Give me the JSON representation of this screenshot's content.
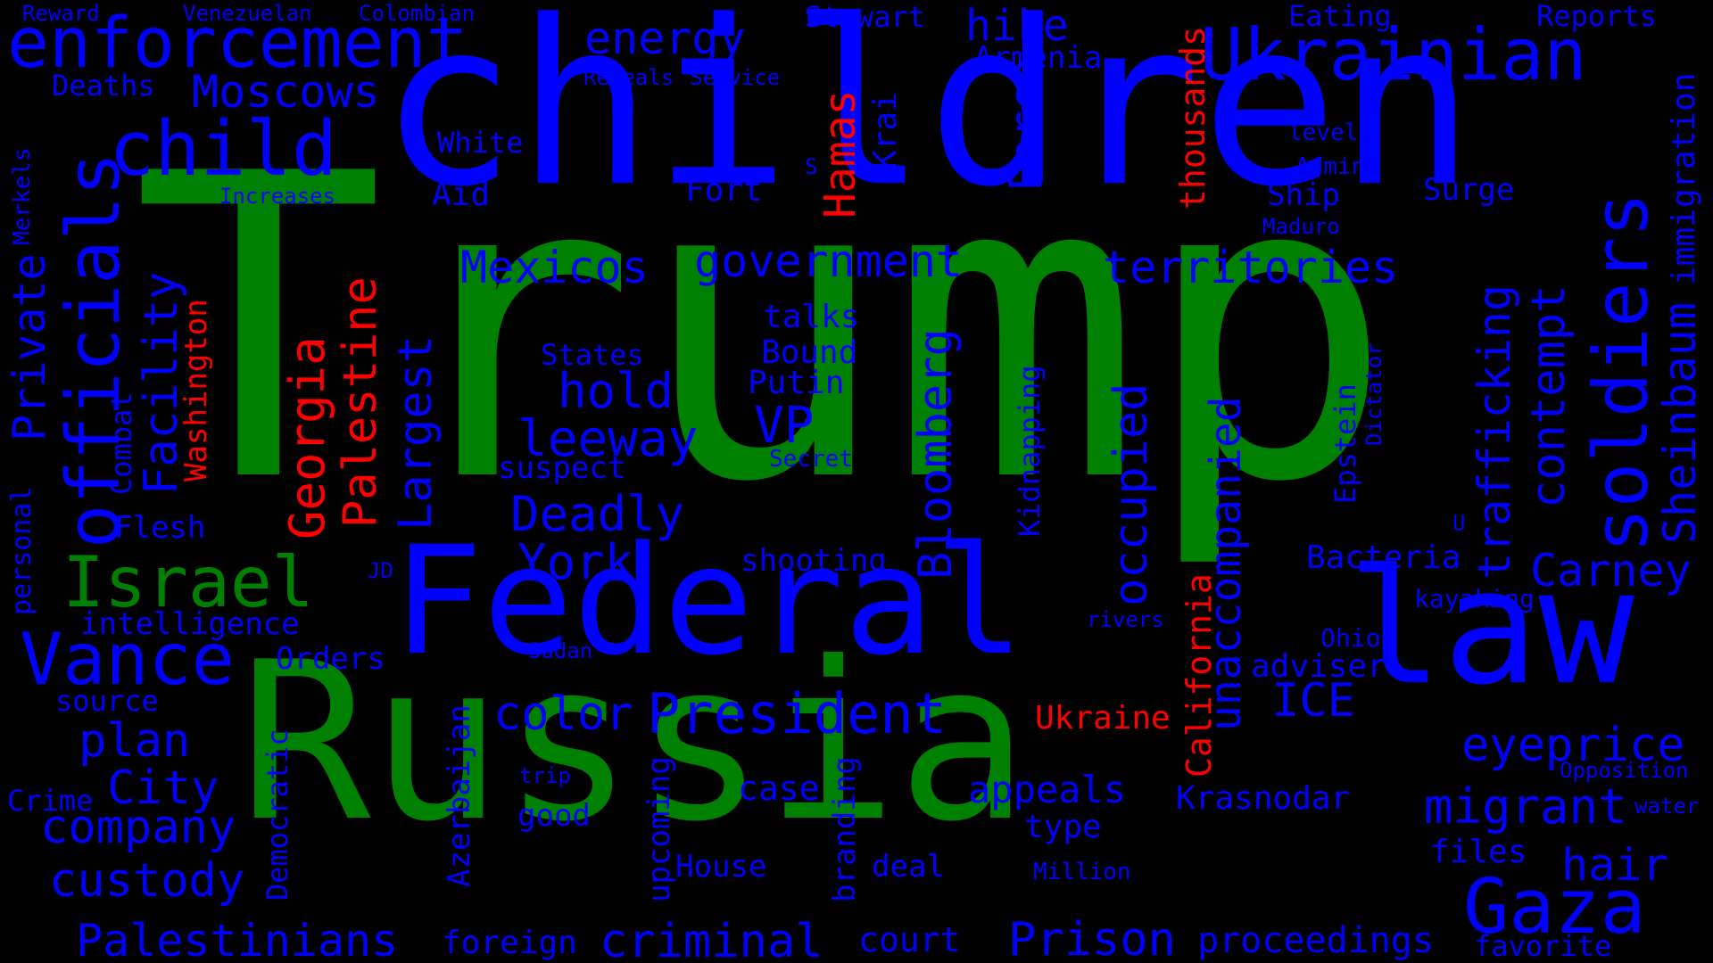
{
  "colors": {
    "background": "#000000",
    "green": "#008000",
    "blue": "#0000ff",
    "red": "#ff0000"
  },
  "words": [
    {
      "name": "trump",
      "text": "Trump",
      "color": "green"
    },
    {
      "name": "russia",
      "text": "Russia",
      "color": "green"
    },
    {
      "name": "israel",
      "text": "Israel",
      "color": "green"
    },
    {
      "name": "children",
      "text": "children",
      "color": "blue"
    },
    {
      "name": "federal",
      "text": "Federal",
      "color": "blue"
    },
    {
      "name": "law",
      "text": "law",
      "color": "blue"
    },
    {
      "name": "enforcement",
      "text": "enforcement",
      "color": "blue"
    },
    {
      "name": "ukrainian",
      "text": "Ukrainian",
      "color": "blue"
    },
    {
      "name": "child",
      "text": "child",
      "color": "blue"
    },
    {
      "name": "officials",
      "text": "officials",
      "color": "blue"
    },
    {
      "name": "vance",
      "text": "Vance",
      "color": "blue"
    },
    {
      "name": "gaza",
      "text": "Gaza",
      "color": "blue"
    },
    {
      "name": "soldiers",
      "text": "soldiers",
      "color": "blue"
    },
    {
      "name": "president",
      "text": "President",
      "color": "blue"
    },
    {
      "name": "moscows",
      "text": "Moscows",
      "color": "blue"
    },
    {
      "name": "energy",
      "text": "energy",
      "color": "blue"
    },
    {
      "name": "hike",
      "text": "hike",
      "color": "blue"
    },
    {
      "name": "stewart",
      "text": "Stewart",
      "color": "blue"
    },
    {
      "name": "eating",
      "text": "Eating",
      "color": "blue"
    },
    {
      "name": "reports",
      "text": "Reports",
      "color": "blue"
    },
    {
      "name": "armenia",
      "text": "Armenia",
      "color": "blue"
    },
    {
      "name": "reward",
      "text": "Reward",
      "color": "blue"
    },
    {
      "name": "venezuelan",
      "text": "Venezuelan",
      "color": "blue"
    },
    {
      "name": "colombian",
      "text": "Colombian",
      "color": "blue"
    },
    {
      "name": "deaths",
      "text": "Deaths",
      "color": "blue"
    },
    {
      "name": "reveals",
      "text": "Reveals",
      "color": "blue"
    },
    {
      "name": "service",
      "text": "Service",
      "color": "blue"
    },
    {
      "name": "white",
      "text": "White",
      "color": "blue"
    },
    {
      "name": "aid",
      "text": "Aid",
      "color": "blue"
    },
    {
      "name": "increases",
      "text": "Increases",
      "color": "blue"
    },
    {
      "name": "fort",
      "text": "Fort",
      "color": "blue"
    },
    {
      "name": "level",
      "text": "level",
      "color": "blue"
    },
    {
      "name": "admin",
      "text": "Admin",
      "color": "blue"
    },
    {
      "name": "ship",
      "text": "Ship",
      "color": "blue"
    },
    {
      "name": "surge",
      "text": "Surge",
      "color": "blue"
    },
    {
      "name": "maduro",
      "text": "Maduro",
      "color": "blue"
    },
    {
      "name": "s",
      "text": "S",
      "color": "blue"
    },
    {
      "name": "mexicos",
      "text": "Mexicos",
      "color": "blue"
    },
    {
      "name": "government",
      "text": "government",
      "color": "blue"
    },
    {
      "name": "territories",
      "text": "territories",
      "color": "blue"
    },
    {
      "name": "talks",
      "text": "talks",
      "color": "blue"
    },
    {
      "name": "bound",
      "text": "Bound",
      "color": "blue"
    },
    {
      "name": "putin",
      "text": "Putin",
      "color": "blue"
    },
    {
      "name": "states",
      "text": "States",
      "color": "blue"
    },
    {
      "name": "hold",
      "text": "hold",
      "color": "blue"
    },
    {
      "name": "vp",
      "text": "VP",
      "color": "blue"
    },
    {
      "name": "leeway",
      "text": "leeway",
      "color": "blue"
    },
    {
      "name": "secret",
      "text": "Secret",
      "color": "blue"
    },
    {
      "name": "suspect",
      "text": "suspect",
      "color": "blue"
    },
    {
      "name": "deadly",
      "text": "Deadly",
      "color": "blue"
    },
    {
      "name": "york",
      "text": "York",
      "color": "blue"
    },
    {
      "name": "shooting",
      "text": "shooting",
      "color": "blue"
    },
    {
      "name": "flesh",
      "text": "Flesh",
      "color": "blue"
    },
    {
      "name": "jd",
      "text": "JD",
      "color": "blue"
    },
    {
      "name": "intelligence",
      "text": "intelligence",
      "color": "blue"
    },
    {
      "name": "orders",
      "text": "Orders",
      "color": "blue"
    },
    {
      "name": "sudan",
      "text": "Sudan",
      "color": "blue"
    },
    {
      "name": "rivers",
      "text": "rivers",
      "color": "blue"
    },
    {
      "name": "source",
      "text": "source",
      "color": "blue"
    },
    {
      "name": "color",
      "text": "color",
      "color": "blue"
    },
    {
      "name": "plan",
      "text": "plan",
      "color": "blue"
    },
    {
      "name": "city",
      "text": "City",
      "color": "blue"
    },
    {
      "name": "crime",
      "text": "Crime",
      "color": "blue"
    },
    {
      "name": "company",
      "text": "company",
      "color": "blue"
    },
    {
      "name": "custody",
      "text": "custody",
      "color": "blue"
    },
    {
      "name": "palestinians",
      "text": "Palestinians",
      "color": "blue"
    },
    {
      "name": "foreign",
      "text": "foreign",
      "color": "blue"
    },
    {
      "name": "criminal",
      "text": "criminal",
      "color": "blue"
    },
    {
      "name": "court",
      "text": "court",
      "color": "blue"
    },
    {
      "name": "prison",
      "text": "Prison",
      "color": "blue"
    },
    {
      "name": "proceedings",
      "text": "proceedings",
      "color": "blue"
    },
    {
      "name": "favorite",
      "text": "favorite",
      "color": "blue"
    },
    {
      "name": "case",
      "text": "case",
      "color": "blue"
    },
    {
      "name": "good",
      "text": "good",
      "color": "blue"
    },
    {
      "name": "trip",
      "text": "trip",
      "color": "blue"
    },
    {
      "name": "house",
      "text": "House",
      "color": "blue"
    },
    {
      "name": "deal",
      "text": "deal",
      "color": "blue"
    },
    {
      "name": "million",
      "text": "Million",
      "color": "blue"
    },
    {
      "name": "appeals",
      "text": "appeals",
      "color": "blue"
    },
    {
      "name": "type",
      "text": "type",
      "color": "blue"
    },
    {
      "name": "krasnodar",
      "text": "Krasnodar",
      "color": "blue"
    },
    {
      "name": "ice",
      "text": "ICE",
      "color": "blue"
    },
    {
      "name": "adviser",
      "text": "adviser",
      "color": "blue"
    },
    {
      "name": "ohio",
      "text": "Ohio",
      "color": "blue"
    },
    {
      "name": "kayaking",
      "text": "kayaking",
      "color": "blue"
    },
    {
      "name": "bacteria",
      "text": "Bacteria",
      "color": "blue"
    },
    {
      "name": "u",
      "text": "U",
      "color": "blue"
    },
    {
      "name": "carney",
      "text": "Carney",
      "color": "blue"
    },
    {
      "name": "eyeprice",
      "text": "eyeprice",
      "color": "blue"
    },
    {
      "name": "migrant",
      "text": "migrant",
      "color": "blue"
    },
    {
      "name": "water",
      "text": "water",
      "color": "blue"
    },
    {
      "name": "opposition",
      "text": "Opposition",
      "color": "blue"
    },
    {
      "name": "files",
      "text": "files",
      "color": "blue"
    },
    {
      "name": "hair",
      "text": "hair",
      "color": "blue"
    },
    {
      "name": "merkels",
      "text": "Merkels",
      "color": "blue"
    },
    {
      "name": "private",
      "text": "Private",
      "color": "blue"
    },
    {
      "name": "personal",
      "text": "personal",
      "color": "blue"
    },
    {
      "name": "facility",
      "text": "Facility",
      "color": "blue"
    },
    {
      "name": "combat",
      "text": "Combat",
      "color": "blue"
    },
    {
      "name": "largest",
      "text": "Largest",
      "color": "blue"
    },
    {
      "name": "force",
      "text": "Force",
      "color": "blue"
    },
    {
      "name": "krai",
      "text": "Krai",
      "color": "blue"
    },
    {
      "name": "bloomberg",
      "text": "Bloomberg",
      "color": "blue"
    },
    {
      "name": "occupied",
      "text": "occupied",
      "color": "blue"
    },
    {
      "name": "unaccompanied",
      "text": "unaccompanied",
      "color": "blue"
    },
    {
      "name": "kidnapping",
      "text": "Kidnapping",
      "color": "blue"
    },
    {
      "name": "epstein",
      "text": "Epstein",
      "color": "blue"
    },
    {
      "name": "dictator",
      "text": "Dictator",
      "color": "blue"
    },
    {
      "name": "trafficking",
      "text": "trafficking",
      "color": "blue"
    },
    {
      "name": "contempt",
      "text": "contempt",
      "color": "blue"
    },
    {
      "name": "sheinbaum",
      "text": "Sheinbaum",
      "color": "blue"
    },
    {
      "name": "immigration",
      "text": "immigration",
      "color": "blue"
    },
    {
      "name": "democratic",
      "text": "Democratic",
      "color": "blue"
    },
    {
      "name": "azerbaijan",
      "text": "Azerbaijan",
      "color": "blue"
    },
    {
      "name": "upcoming",
      "text": "upcoming",
      "color": "blue"
    },
    {
      "name": "branding",
      "text": "branding",
      "color": "blue"
    },
    {
      "name": "hamas",
      "text": "Hamas",
      "color": "red"
    },
    {
      "name": "thousands",
      "text": "thousands",
      "color": "red"
    },
    {
      "name": "washington",
      "text": "Washington",
      "color": "red"
    },
    {
      "name": "georgia",
      "text": "Georgia",
      "color": "red"
    },
    {
      "name": "palestine",
      "text": "Palestine",
      "color": "red"
    },
    {
      "name": "ukraine",
      "text": "Ukraine",
      "color": "red"
    },
    {
      "name": "california",
      "text": "California",
      "color": "red"
    }
  ]
}
